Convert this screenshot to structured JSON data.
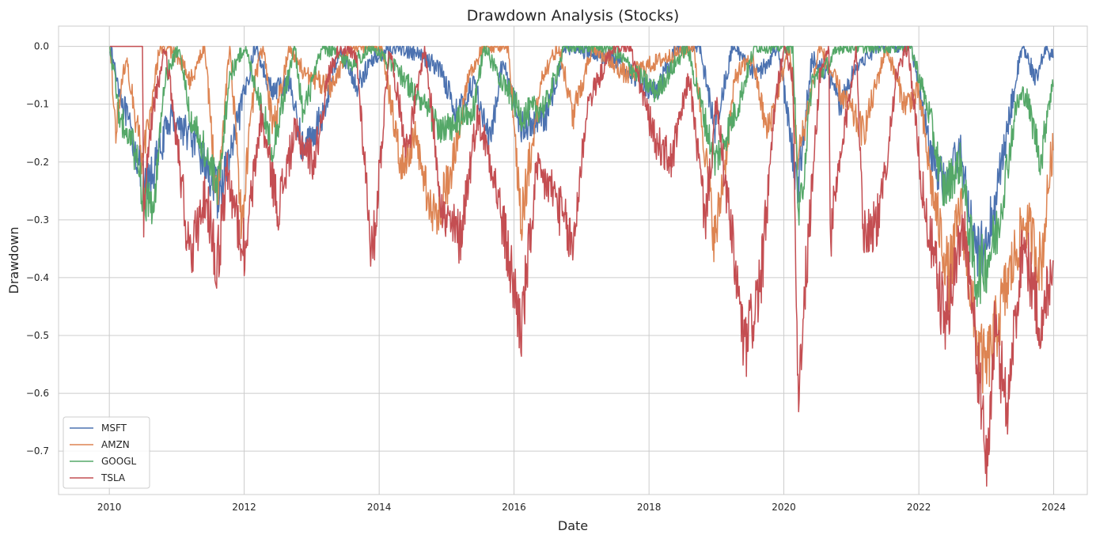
{
  "chart_data": {
    "type": "line",
    "title": "Drawdown Analysis (Stocks)",
    "xlabel": "Date",
    "ylabel": "Drawdown",
    "xlim": [
      "2009-04-01",
      "2024-07-01"
    ],
    "ylim": [
      -0.775,
      0.035
    ],
    "x_ticks": [
      "2010",
      "2012",
      "2014",
      "2016",
      "2018",
      "2020",
      "2022",
      "2024"
    ],
    "y_ticks": [
      0.0,
      -0.1,
      -0.2,
      -0.3,
      -0.4,
      -0.5,
      -0.6,
      -0.7
    ],
    "y_tick_labels": [
      "0.0",
      "−0.1",
      "−0.2",
      "−0.3",
      "−0.4",
      "−0.5",
      "−0.6",
      "−0.7"
    ],
    "grid": true,
    "legend_position": "lower-left",
    "series": [
      {
        "name": "MSFT",
        "color": "#4c72b0",
        "points": [
          [
            "2010-01-04",
            0.0
          ],
          [
            "2010-03-01",
            -0.08
          ],
          [
            "2010-06-15",
            -0.21
          ],
          [
            "2010-07-15",
            -0.25
          ],
          [
            "2010-09-01",
            -0.21
          ],
          [
            "2010-12-01",
            -0.12
          ],
          [
            "2011-03-01",
            -0.15
          ],
          [
            "2011-06-01",
            -0.2
          ],
          [
            "2011-08-15",
            -0.26
          ],
          [
            "2011-11-01",
            -0.17
          ],
          [
            "2012-03-01",
            -0.0
          ],
          [
            "2012-06-01",
            -0.08
          ],
          [
            "2012-09-01",
            -0.06
          ],
          [
            "2012-11-15",
            -0.18
          ],
          [
            "2013-03-01",
            -0.12
          ],
          [
            "2013-06-01",
            0.0
          ],
          [
            "2013-09-01",
            -0.07
          ],
          [
            "2013-12-01",
            -0.02
          ],
          [
            "2014-04-01",
            0.0
          ],
          [
            "2014-09-01",
            -0.02
          ],
          [
            "2014-12-01",
            -0.04
          ],
          [
            "2015-03-01",
            -0.12
          ],
          [
            "2015-06-01",
            -0.06
          ],
          [
            "2015-08-25",
            -0.17
          ],
          [
            "2015-11-01",
            -0.02
          ],
          [
            "2016-02-10",
            -0.14
          ],
          [
            "2016-06-27",
            -0.12
          ],
          [
            "2016-10-01",
            0.0
          ],
          [
            "2017-06-01",
            -0.02
          ],
          [
            "2018-02-08",
            -0.08
          ],
          [
            "2018-06-01",
            0.0
          ],
          [
            "2018-10-01",
            0.0
          ],
          [
            "2018-12-24",
            -0.14
          ],
          [
            "2019-04-01",
            0.0
          ],
          [
            "2019-08-15",
            -0.05
          ],
          [
            "2019-12-01",
            0.0
          ],
          [
            "2020-03-16",
            -0.25
          ],
          [
            "2020-06-01",
            -0.02
          ],
          [
            "2020-09-01",
            -0.05
          ],
          [
            "2020-10-30",
            -0.1
          ],
          [
            "2021-02-01",
            -0.03
          ],
          [
            "2021-06-01",
            0.0
          ],
          [
            "2021-11-22",
            0.0
          ],
          [
            "2022-01-15",
            -0.1
          ],
          [
            "2022-03-01",
            -0.18
          ],
          [
            "2022-05-15",
            -0.24
          ],
          [
            "2022-08-15",
            -0.18
          ],
          [
            "2022-11-03",
            -0.37
          ],
          [
            "2023-01-06",
            -0.33
          ],
          [
            "2023-03-01",
            -0.25
          ],
          [
            "2023-06-15",
            -0.05
          ],
          [
            "2023-07-18",
            0.0
          ],
          [
            "2023-10-01",
            -0.06
          ],
          [
            "2023-11-20",
            0.0
          ],
          [
            "2023-12-29",
            -0.02
          ]
        ]
      },
      {
        "name": "AMZN",
        "color": "#dd8452",
        "points": [
          [
            "2010-01-04",
            0.0
          ],
          [
            "2010-02-05",
            -0.14
          ],
          [
            "2010-04-01",
            -0.02
          ],
          [
            "2010-07-01",
            -0.2
          ],
          [
            "2010-10-01",
            0.0
          ],
          [
            "2011-01-15",
            -0.02
          ],
          [
            "2011-03-15",
            -0.06
          ],
          [
            "2011-06-01",
            0.0
          ],
          [
            "2011-08-08",
            -0.27
          ],
          [
            "2011-10-15",
            0.0
          ],
          [
            "2011-12-19",
            -0.3
          ],
          [
            "2012-03-01",
            -0.05
          ],
          [
            "2012-04-15",
            0.0
          ],
          [
            "2012-06-04",
            -0.15
          ],
          [
            "2012-09-01",
            0.0
          ],
          [
            "2012-12-01",
            -0.05
          ],
          [
            "2013-04-15",
            -0.07
          ],
          [
            "2013-08-01",
            0.0
          ],
          [
            "2014-01-15",
            0.0
          ],
          [
            "2014-04-30",
            -0.21
          ],
          [
            "2014-07-15",
            -0.16
          ],
          [
            "2014-10-20",
            -0.3
          ],
          [
            "2015-01-15",
            -0.23
          ],
          [
            "2015-04-30",
            -0.05
          ],
          [
            "2015-07-24",
            0.0
          ],
          [
            "2015-12-01",
            0.0
          ],
          [
            "2016-02-09",
            -0.3
          ],
          [
            "2016-06-01",
            -0.05
          ],
          [
            "2016-09-01",
            0.0
          ],
          [
            "2016-11-15",
            -0.12
          ],
          [
            "2017-03-01",
            0.0
          ],
          [
            "2017-09-01",
            -0.05
          ],
          [
            "2018-04-01",
            -0.02
          ],
          [
            "2018-08-31",
            0.0
          ],
          [
            "2018-12-24",
            -0.34
          ],
          [
            "2019-04-15",
            -0.05
          ],
          [
            "2019-07-15",
            -0.02
          ],
          [
            "2019-10-01",
            -0.15
          ],
          [
            "2020-01-31",
            0.0
          ],
          [
            "2020-03-16",
            -0.2
          ],
          [
            "2020-07-13",
            0.0
          ],
          [
            "2020-11-01",
            -0.08
          ],
          [
            "2021-03-08",
            -0.15
          ],
          [
            "2021-07-08",
            0.0
          ],
          [
            "2021-10-15",
            -0.1
          ],
          [
            "2022-01-01",
            -0.08
          ],
          [
            "2022-03-15",
            -0.25
          ],
          [
            "2022-06-13",
            -0.4
          ],
          [
            "2022-08-15",
            -0.27
          ],
          [
            "2022-11-03",
            -0.5
          ],
          [
            "2022-12-28",
            -0.56
          ],
          [
            "2023-03-01",
            -0.48
          ],
          [
            "2023-06-15",
            -0.35
          ],
          [
            "2023-08-01",
            -0.3
          ],
          [
            "2023-10-26",
            -0.38
          ],
          [
            "2023-12-15",
            -0.2
          ],
          [
            "2023-12-29",
            -0.18
          ]
        ]
      },
      {
        "name": "GOOGL",
        "color": "#55a868",
        "points": [
          [
            "2010-01-04",
            0.0
          ],
          [
            "2010-03-01",
            -0.13
          ],
          [
            "2010-05-01",
            -0.16
          ],
          [
            "2010-07-01",
            -0.25
          ],
          [
            "2010-08-31",
            -0.28
          ],
          [
            "2010-11-01",
            -0.05
          ],
          [
            "2011-01-15",
            0.0
          ],
          [
            "2011-03-15",
            -0.12
          ],
          [
            "2011-06-24",
            -0.2
          ],
          [
            "2011-08-08",
            -0.25
          ],
          [
            "2011-10-15",
            -0.05
          ],
          [
            "2012-01-04",
            0.0
          ],
          [
            "2012-04-01",
            -0.1
          ],
          [
            "2012-06-01",
            -0.18
          ],
          [
            "2012-10-01",
            0.0
          ],
          [
            "2012-11-15",
            -0.12
          ],
          [
            "2013-03-01",
            0.0
          ],
          [
            "2013-08-01",
            -0.03
          ],
          [
            "2013-12-01",
            0.0
          ],
          [
            "2014-05-01",
            -0.05
          ],
          [
            "2014-12-15",
            -0.15
          ],
          [
            "2015-06-01",
            -0.11
          ],
          [
            "2015-07-20",
            0.0
          ],
          [
            "2016-02-10",
            -0.12
          ],
          [
            "2016-06-27",
            -0.1
          ],
          [
            "2016-10-01",
            0.0
          ],
          [
            "2017-06-01",
            0.0
          ],
          [
            "2018-02-08",
            -0.08
          ],
          [
            "2018-07-26",
            0.0
          ],
          [
            "2018-12-24",
            -0.2
          ],
          [
            "2019-05-01",
            -0.1
          ],
          [
            "2019-07-26",
            0.0
          ],
          [
            "2020-02-19",
            0.0
          ],
          [
            "2020-03-23",
            -0.31
          ],
          [
            "2020-06-01",
            -0.06
          ],
          [
            "2020-09-01",
            -0.03
          ],
          [
            "2020-10-30",
            0.0
          ],
          [
            "2021-05-01",
            0.0
          ],
          [
            "2021-11-19",
            0.0
          ],
          [
            "2022-03-01",
            -0.12
          ],
          [
            "2022-05-15",
            -0.25
          ],
          [
            "2022-08-15",
            -0.2
          ],
          [
            "2022-11-03",
            -0.4
          ],
          [
            "2023-01-05",
            -0.37
          ],
          [
            "2023-03-01",
            -0.32
          ],
          [
            "2023-06-15",
            -0.1
          ],
          [
            "2023-08-01",
            -0.08
          ],
          [
            "2023-10-26",
            -0.2
          ],
          [
            "2023-12-01",
            -0.1
          ],
          [
            "2023-12-29",
            -0.07
          ]
        ]
      },
      {
        "name": "TSLA",
        "color": "#c44e52",
        "points": [
          [
            "2010-01-04",
            0.0
          ],
          [
            "2010-06-29",
            0.0
          ],
          [
            "2010-07-06",
            -0.3
          ],
          [
            "2010-07-20",
            -0.2
          ],
          [
            "2010-09-01",
            -0.1
          ],
          [
            "2010-11-01",
            0.0
          ],
          [
            "2011-01-15",
            -0.2
          ],
          [
            "2011-03-15",
            -0.38
          ],
          [
            "2011-06-01",
            -0.25
          ],
          [
            "2011-08-08",
            -0.38
          ],
          [
            "2011-10-01",
            -0.22
          ],
          [
            "2012-01-04",
            -0.36
          ],
          [
            "2012-04-01",
            -0.12
          ],
          [
            "2012-07-01",
            -0.28
          ],
          [
            "2012-10-01",
            -0.15
          ],
          [
            "2013-01-15",
            -0.2
          ],
          [
            "2013-04-01",
            -0.05
          ],
          [
            "2013-06-01",
            0.0
          ],
          [
            "2013-09-01",
            -0.02
          ],
          [
            "2013-11-25",
            -0.37
          ],
          [
            "2014-02-25",
            0.0
          ],
          [
            "2014-06-01",
            -0.18
          ],
          [
            "2014-09-04",
            0.0
          ],
          [
            "2014-12-15",
            -0.3
          ],
          [
            "2015-03-15",
            -0.33
          ],
          [
            "2015-06-15",
            -0.12
          ],
          [
            "2015-09-01",
            -0.2
          ],
          [
            "2016-02-10",
            -0.49
          ],
          [
            "2016-05-01",
            -0.22
          ],
          [
            "2016-08-01",
            -0.25
          ],
          [
            "2016-11-14",
            -0.35
          ],
          [
            "2017-02-01",
            -0.1
          ],
          [
            "2017-06-23",
            0.0
          ],
          [
            "2017-09-18",
            0.0
          ],
          [
            "2018-02-01",
            -0.16
          ],
          [
            "2018-05-01",
            -0.2
          ],
          [
            "2018-08-07",
            -0.05
          ],
          [
            "2018-11-01",
            -0.3
          ],
          [
            "2019-01-01",
            -0.1
          ],
          [
            "2019-06-03",
            -0.53
          ],
          [
            "2019-09-01",
            -0.4
          ],
          [
            "2019-11-15",
            -0.1
          ],
          [
            "2019-12-31",
            0.0
          ],
          [
            "2020-02-19",
            -0.05
          ],
          [
            "2020-03-18",
            -0.6
          ],
          [
            "2020-07-13",
            -0.05
          ],
          [
            "2020-09-01",
            0.0
          ],
          [
            "2020-09-08",
            -0.33
          ],
          [
            "2021-01-26",
            0.0
          ],
          [
            "2021-03-08",
            -0.32
          ],
          [
            "2021-06-01",
            -0.3
          ],
          [
            "2021-09-01",
            -0.05
          ],
          [
            "2021-11-04",
            0.0
          ],
          [
            "2022-01-27",
            -0.27
          ],
          [
            "2022-05-24",
            -0.48
          ],
          [
            "2022-09-01",
            -0.3
          ],
          [
            "2022-11-01",
            -0.5
          ],
          [
            "2023-01-03",
            -0.73
          ],
          [
            "2023-02-15",
            -0.5
          ],
          [
            "2023-04-26",
            -0.62
          ],
          [
            "2023-07-19",
            -0.33
          ],
          [
            "2023-10-31",
            -0.5
          ],
          [
            "2023-12-01",
            -0.41
          ],
          [
            "2023-12-29",
            -0.37
          ]
        ]
      }
    ]
  }
}
